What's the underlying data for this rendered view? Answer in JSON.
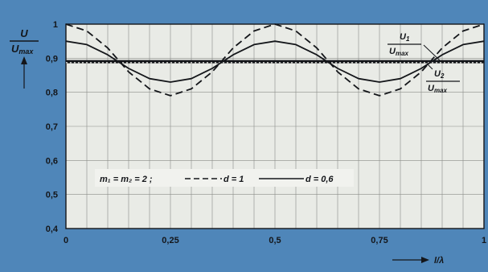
{
  "chart_data": {
    "type": "line",
    "title": "",
    "xlabel": "l/λ",
    "ylabel": {
      "num": "U",
      "den": "U",
      "den_sub": "max"
    },
    "xlim": [
      0,
      1
    ],
    "ylim": [
      0.4,
      1.0
    ],
    "x_ticks": [
      {
        "value": 0,
        "label": "0"
      },
      {
        "value": 0.25,
        "label": "0,25"
      },
      {
        "value": 0.5,
        "label": "0,5"
      },
      {
        "value": 0.75,
        "label": "0,75"
      },
      {
        "value": 1,
        "label": "1"
      }
    ],
    "y_ticks": [
      {
        "value": 0.4,
        "label": "0,4"
      },
      {
        "value": 0.5,
        "label": "0,5"
      },
      {
        "value": 0.6,
        "label": "0,6"
      },
      {
        "value": 0.7,
        "label": "0,7"
      },
      {
        "value": 0.8,
        "label": "0,8"
      },
      {
        "value": 0.9,
        "label": "0,9"
      },
      {
        "value": 1.0,
        "label": "1"
      }
    ],
    "grid": true,
    "legend": {
      "position": "middle-left",
      "prefix": "m₁ = m₂ = 2 ;",
      "entries": [
        {
          "series": 0,
          "label": "d = 1"
        },
        {
          "series": 1,
          "label": "d = 0,6"
        }
      ]
    },
    "series": [
      {
        "style": "dashed",
        "x": [
          0,
          0.05,
          0.1,
          0.15,
          0.2,
          0.25,
          0.3,
          0.35,
          0.4,
          0.45,
          0.5,
          0.55,
          0.6,
          0.65,
          0.7,
          0.75,
          0.8,
          0.85,
          0.9,
          0.95,
          1
        ],
        "y": [
          1.0,
          0.98,
          0.93,
          0.86,
          0.81,
          0.79,
          0.81,
          0.86,
          0.93,
          0.98,
          1.0,
          0.98,
          0.93,
          0.86,
          0.81,
          0.79,
          0.81,
          0.86,
          0.93,
          0.98,
          1.0
        ]
      },
      {
        "style": "solid",
        "x": [
          0,
          0.05,
          0.1,
          0.15,
          0.2,
          0.25,
          0.3,
          0.35,
          0.4,
          0.45,
          0.5,
          0.55,
          0.6,
          0.65,
          0.7,
          0.75,
          0.8,
          0.85,
          0.9,
          0.95,
          1
        ],
        "y": [
          0.95,
          0.94,
          0.91,
          0.87,
          0.84,
          0.83,
          0.84,
          0.87,
          0.91,
          0.94,
          0.95,
          0.94,
          0.91,
          0.87,
          0.84,
          0.83,
          0.84,
          0.87,
          0.91,
          0.94,
          0.95
        ]
      }
    ],
    "reference_lines": [
      {
        "style": "solid-thick",
        "y": 0.89
      },
      {
        "style": "dotted",
        "y": 0.887
      }
    ],
    "annotations": [
      {
        "num": "U",
        "num_sub": "1",
        "den": "U",
        "den_sub": "max"
      },
      {
        "num": "U",
        "num_sub": "2",
        "den": "U",
        "den_sub": "max"
      }
    ]
  }
}
